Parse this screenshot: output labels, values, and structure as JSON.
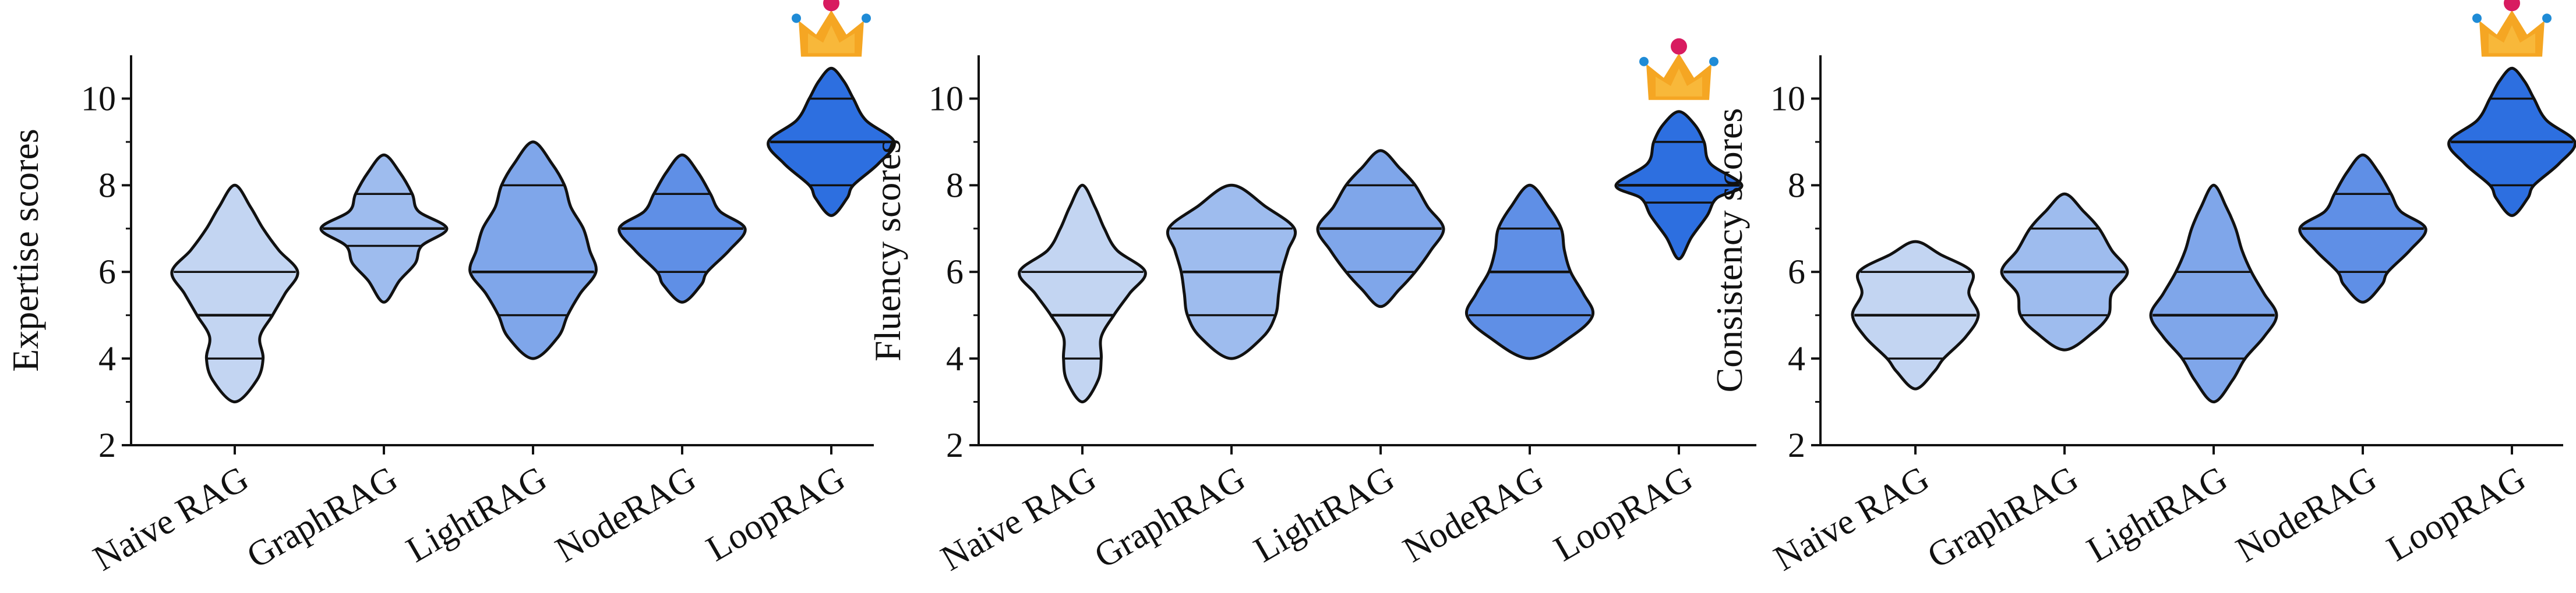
{
  "figure": {
    "theme": {
      "violin_colors": [
        "#c3d5f2",
        "#9ebcee",
        "#7fa6ea",
        "#5f8fe6",
        "#2d6fe0"
      ],
      "outline_color": "#111111",
      "crown_color": "#f5a623",
      "crown_jewel_color": "#d81b60",
      "crown_tip_color": "#1f8bd6"
    }
  },
  "chart_data": [
    {
      "type": "violin",
      "ylabel": "Expertise scores",
      "ylim": [
        2,
        11
      ],
      "yticks": [
        "2",
        "4",
        "6",
        "8",
        "10"
      ],
      "categories": [
        "Naive RAG",
        "GraphRAG",
        "LightRAG",
        "NodeRAG",
        "LoopRAG"
      ],
      "crown_category": "LoopRAG",
      "series": [
        {
          "category": "Naive RAG",
          "range": [
            3,
            8
          ],
          "quartiles": [
            4,
            5,
            6
          ],
          "density": [
            [
              3,
              0.0
            ],
            [
              3.5,
              0.35
            ],
            [
              4,
              0.45
            ],
            [
              4.5,
              0.4
            ],
            [
              5,
              0.6
            ],
            [
              5.5,
              0.8
            ],
            [
              6,
              1.0
            ],
            [
              6.5,
              0.7
            ],
            [
              7,
              0.45
            ],
            [
              7.5,
              0.25
            ],
            [
              8,
              0.0
            ]
          ]
        },
        {
          "category": "GraphRAG",
          "range": [
            5.3,
            8.7
          ],
          "quartiles": [
            6.6,
            7,
            7.8
          ],
          "density": [
            [
              5.3,
              0.0
            ],
            [
              5.8,
              0.25
            ],
            [
              6.2,
              0.5
            ],
            [
              6.6,
              0.6
            ],
            [
              7,
              1.0
            ],
            [
              7.4,
              0.55
            ],
            [
              7.8,
              0.45
            ],
            [
              8.3,
              0.25
            ],
            [
              8.7,
              0.0
            ]
          ]
        },
        {
          "category": "LightRAG",
          "range": [
            4,
            9
          ],
          "quartiles": [
            5,
            6,
            8
          ],
          "density": [
            [
              4,
              0.0
            ],
            [
              4.5,
              0.4
            ],
            [
              5,
              0.55
            ],
            [
              5.5,
              0.75
            ],
            [
              6,
              1.0
            ],
            [
              6.5,
              0.9
            ],
            [
              7,
              0.8
            ],
            [
              7.5,
              0.6
            ],
            [
              8,
              0.5
            ],
            [
              8.5,
              0.3
            ],
            [
              9,
              0.0
            ]
          ]
        },
        {
          "category": "NodeRAG",
          "range": [
            5.3,
            8.7
          ],
          "quartiles": [
            6,
            7,
            7.8
          ],
          "density": [
            [
              5.3,
              0.0
            ],
            [
              5.7,
              0.3
            ],
            [
              6,
              0.4
            ],
            [
              6.5,
              0.75
            ],
            [
              7,
              1.0
            ],
            [
              7.4,
              0.6
            ],
            [
              7.8,
              0.45
            ],
            [
              8.3,
              0.25
            ],
            [
              8.7,
              0.0
            ]
          ]
        },
        {
          "category": "LoopRAG",
          "range": [
            7.3,
            10.7
          ],
          "quartiles": [
            8,
            9,
            10
          ],
          "density": [
            [
              7.3,
              0.0
            ],
            [
              7.7,
              0.25
            ],
            [
              8,
              0.35
            ],
            [
              8.5,
              0.75
            ],
            [
              9,
              1.0
            ],
            [
              9.5,
              0.55
            ],
            [
              10,
              0.35
            ],
            [
              10.4,
              0.2
            ],
            [
              10.7,
              0.0
            ]
          ]
        }
      ]
    },
    {
      "type": "violin",
      "ylabel": "Fluency scores",
      "ylim": [
        2,
        11
      ],
      "yticks": [
        "2",
        "4",
        "6",
        "8",
        "10"
      ],
      "categories": [
        "Naive RAG",
        "GraphRAG",
        "LightRAG",
        "NodeRAG",
        "LoopRAG"
      ],
      "crown_category": "LoopRAG",
      "series": [
        {
          "category": "Naive RAG",
          "range": [
            3,
            8
          ],
          "quartiles": [
            4,
            5,
            6
          ],
          "density": [
            [
              3,
              0.0
            ],
            [
              3.5,
              0.25
            ],
            [
              4,
              0.3
            ],
            [
              4.5,
              0.3
            ],
            [
              5,
              0.5
            ],
            [
              5.5,
              0.75
            ],
            [
              6,
              1.0
            ],
            [
              6.5,
              0.55
            ],
            [
              7,
              0.35
            ],
            [
              7.5,
              0.2
            ],
            [
              8,
              0.0
            ]
          ]
        },
        {
          "category": "GraphRAG",
          "range": [
            4,
            8
          ],
          "quartiles": [
            5,
            6,
            7
          ],
          "density": [
            [
              4,
              0.0
            ],
            [
              4.5,
              0.5
            ],
            [
              5,
              0.7
            ],
            [
              5.5,
              0.75
            ],
            [
              6,
              0.8
            ],
            [
              6.5,
              0.9
            ],
            [
              7,
              1.0
            ],
            [
              7.5,
              0.55
            ],
            [
              8,
              0.0
            ]
          ]
        },
        {
          "category": "LightRAG",
          "range": [
            5.2,
            8.8
          ],
          "quartiles": [
            6,
            7,
            8
          ],
          "density": [
            [
              5.2,
              0.0
            ],
            [
              5.6,
              0.3
            ],
            [
              6,
              0.55
            ],
            [
              6.5,
              0.8
            ],
            [
              7,
              1.0
            ],
            [
              7.5,
              0.75
            ],
            [
              8,
              0.55
            ],
            [
              8.4,
              0.3
            ],
            [
              8.8,
              0.0
            ]
          ]
        },
        {
          "category": "NodeRAG",
          "range": [
            4,
            8
          ],
          "quartiles": [
            5,
            6,
            7
          ],
          "density": [
            [
              4,
              0.0
            ],
            [
              4.5,
              0.65
            ],
            [
              5,
              1.0
            ],
            [
              5.5,
              0.85
            ],
            [
              6,
              0.65
            ],
            [
              6.5,
              0.55
            ],
            [
              7,
              0.5
            ],
            [
              7.5,
              0.3
            ],
            [
              8,
              0.0
            ]
          ]
        },
        {
          "category": "LoopRAG",
          "range": [
            6.3,
            9.7
          ],
          "quartiles": [
            7.6,
            8,
            9
          ],
          "density": [
            [
              6.3,
              0.0
            ],
            [
              6.8,
              0.2
            ],
            [
              7.3,
              0.45
            ],
            [
              7.7,
              0.6
            ],
            [
              8,
              1.0
            ],
            [
              8.5,
              0.5
            ],
            [
              9,
              0.4
            ],
            [
              9.4,
              0.25
            ],
            [
              9.7,
              0.0
            ]
          ]
        }
      ]
    },
    {
      "type": "violin",
      "ylabel": "Consistency scores",
      "ylim": [
        2,
        11
      ],
      "yticks": [
        "2",
        "4",
        "6",
        "8",
        "10"
      ],
      "categories": [
        "Naive RAG",
        "GraphRAG",
        "LightRAG",
        "NodeRAG",
        "LoopRAG"
      ],
      "crown_category": "LoopRAG",
      "series": [
        {
          "category": "Naive RAG",
          "range": [
            3.3,
            6.7
          ],
          "quartiles": [
            4,
            5,
            6
          ],
          "density": [
            [
              3.3,
              0.0
            ],
            [
              3.7,
              0.3
            ],
            [
              4,
              0.45
            ],
            [
              4.5,
              0.8
            ],
            [
              5,
              1.0
            ],
            [
              5.5,
              0.85
            ],
            [
              6,
              0.9
            ],
            [
              6.4,
              0.4
            ],
            [
              6.7,
              0.0
            ]
          ]
        },
        {
          "category": "GraphRAG",
          "range": [
            4.2,
            7.8
          ],
          "quartiles": [
            5,
            6,
            7
          ],
          "density": [
            [
              4.2,
              0.0
            ],
            [
              4.6,
              0.45
            ],
            [
              5,
              0.7
            ],
            [
              5.5,
              0.75
            ],
            [
              6,
              1.0
            ],
            [
              6.5,
              0.75
            ],
            [
              7,
              0.55
            ],
            [
              7.4,
              0.3
            ],
            [
              7.8,
              0.0
            ]
          ]
        },
        {
          "category": "LightRAG",
          "range": [
            3,
            8
          ],
          "quartiles": [
            4,
            5,
            6
          ],
          "density": [
            [
              3,
              0.0
            ],
            [
              3.5,
              0.3
            ],
            [
              4,
              0.5
            ],
            [
              4.5,
              0.8
            ],
            [
              5,
              1.0
            ],
            [
              5.5,
              0.8
            ],
            [
              6,
              0.6
            ],
            [
              6.5,
              0.45
            ],
            [
              7,
              0.35
            ],
            [
              7.5,
              0.2
            ],
            [
              8,
              0.0
            ]
          ]
        },
        {
          "category": "NodeRAG",
          "range": [
            5.3,
            8.7
          ],
          "quartiles": [
            6,
            7,
            7.8
          ],
          "density": [
            [
              5.3,
              0.0
            ],
            [
              5.7,
              0.3
            ],
            [
              6,
              0.4
            ],
            [
              6.5,
              0.75
            ],
            [
              7,
              1.0
            ],
            [
              7.4,
              0.6
            ],
            [
              7.8,
              0.45
            ],
            [
              8.3,
              0.25
            ],
            [
              8.7,
              0.0
            ]
          ]
        },
        {
          "category": "LoopRAG",
          "range": [
            7.3,
            10.7
          ],
          "quartiles": [
            8,
            9,
            10
          ],
          "density": [
            [
              7.3,
              0.0
            ],
            [
              7.7,
              0.25
            ],
            [
              8,
              0.35
            ],
            [
              8.5,
              0.75
            ],
            [
              9,
              1.0
            ],
            [
              9.5,
              0.55
            ],
            [
              10,
              0.35
            ],
            [
              10.4,
              0.2
            ],
            [
              10.7,
              0.0
            ]
          ]
        }
      ]
    }
  ]
}
